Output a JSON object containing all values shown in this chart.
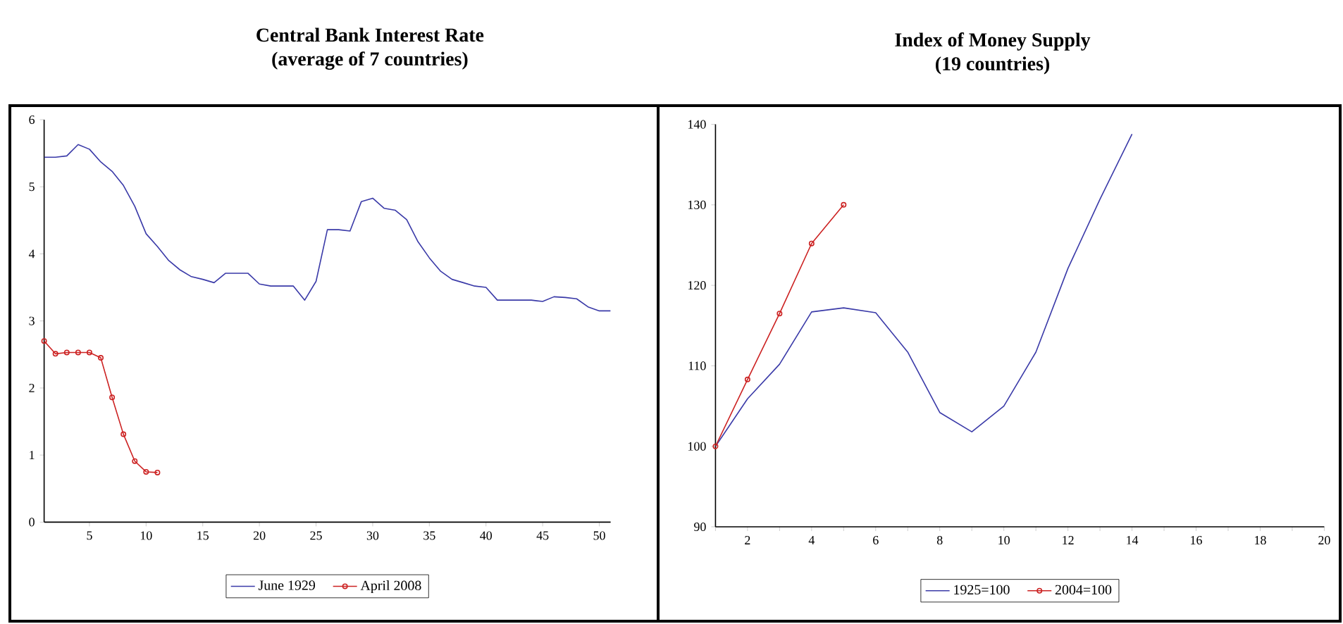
{
  "chart_data": [
    {
      "type": "line",
      "title": "Central Bank Interest Rate",
      "subtitle": "(average of 7 countries)",
      "legend": "bottom",
      "grid": false,
      "xlim": [
        1,
        51
      ],
      "xticks": [
        5,
        10,
        15,
        20,
        25,
        30,
        35,
        40,
        45,
        50
      ],
      "ylim": [
        0,
        6
      ],
      "yticks": [
        0,
        1,
        2,
        3,
        4,
        5,
        6
      ],
      "series": [
        {
          "name": "June 1929",
          "color": "#3a3aa8",
          "marker": "none",
          "line_style": "solid",
          "x": [
            1,
            2,
            3,
            4,
            5,
            6,
            7,
            8,
            9,
            10,
            11,
            12,
            13,
            14,
            15,
            16,
            17,
            18,
            19,
            20,
            21,
            22,
            23,
            24,
            25,
            26,
            27,
            28,
            29,
            30,
            31,
            32,
            33,
            34,
            35,
            36,
            37,
            38,
            39,
            40,
            41,
            42,
            43,
            44,
            45,
            46,
            47,
            48,
            49,
            50,
            51
          ],
          "values": [
            5.44,
            5.44,
            5.46,
            5.63,
            5.56,
            5.37,
            5.23,
            5.02,
            4.71,
            4.3,
            4.11,
            3.9,
            3.76,
            3.66,
            3.62,
            3.57,
            3.71,
            3.71,
            3.71,
            3.55,
            3.52,
            3.52,
            3.52,
            3.31,
            3.59,
            4.36,
            4.36,
            4.34,
            4.78,
            4.83,
            4.68,
            4.65,
            4.51,
            4.18,
            3.94,
            3.74,
            3.62,
            3.57,
            3.52,
            3.5,
            3.31,
            3.31,
            3.31,
            3.31,
            3.29,
            3.36,
            3.35,
            3.33,
            3.21,
            3.15,
            3.15
          ]
        },
        {
          "name": "April 2008",
          "color": "#cc2222",
          "marker": "circle",
          "line_style": "solid",
          "x": [
            1,
            2,
            3,
            4,
            5,
            6,
            7,
            8,
            9,
            10,
            11
          ],
          "values": [
            2.7,
            2.51,
            2.53,
            2.53,
            2.53,
            2.45,
            1.86,
            1.31,
            0.91,
            0.75,
            0.74
          ]
        }
      ]
    },
    {
      "type": "line",
      "title": "Index of Money Supply",
      "subtitle": "(19 countries)",
      "legend": "bottom",
      "grid": false,
      "xlim": [
        1,
        20
      ],
      "xticks": [
        {
          "value": 1,
          "label": null
        },
        2,
        {
          "value": 3,
          "label": null
        },
        4,
        {
          "value": 5,
          "label": null
        },
        6,
        {
          "value": 7,
          "label": null
        },
        8,
        {
          "value": 9,
          "label": null
        },
        10,
        {
          "value": 11,
          "label": null
        },
        12,
        {
          "value": 13,
          "label": null
        },
        14,
        {
          "value": 15,
          "label": null
        },
        16,
        {
          "value": 17,
          "label": null
        },
        18,
        {
          "value": 19,
          "label": null
        },
        20
      ],
      "ylim": [
        90,
        140
      ],
      "yticks": [
        90,
        100,
        110,
        120,
        130,
        140
      ],
      "series": [
        {
          "name": "1925=100",
          "color": "#3a3aa8",
          "marker": "none",
          "line_style": "solid",
          "x": [
            1,
            2,
            3,
            4,
            5,
            6,
            7,
            8,
            9,
            10,
            11,
            12,
            13,
            14
          ],
          "values": [
            100,
            105.9,
            110.2,
            116.7,
            117.2,
            116.6,
            111.7,
            104.2,
            101.8,
            105,
            111.7,
            122.1,
            130.7,
            138.8
          ]
        },
        {
          "name": "2004=100",
          "color": "#cc2222",
          "marker": "circle",
          "line_style": "solid",
          "x": [
            1,
            2,
            3,
            4,
            5
          ],
          "values": [
            100,
            108.3,
            116.5,
            125.2,
            130
          ]
        }
      ]
    }
  ]
}
